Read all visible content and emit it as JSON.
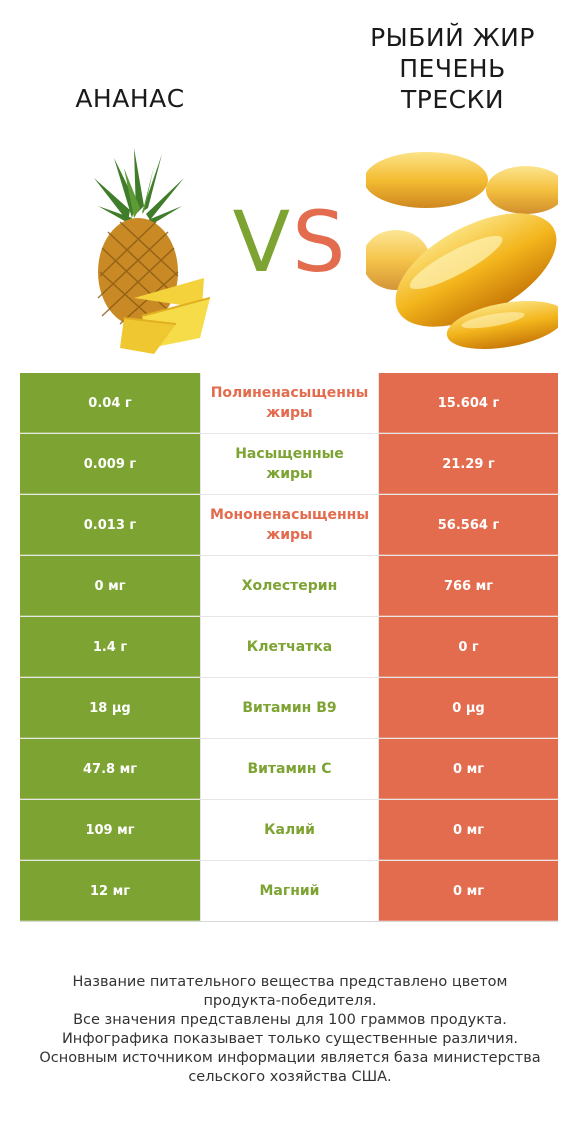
{
  "header": {
    "left_title": "АНАНАС",
    "right_title_lines": [
      "РЫБИЙ ЖИР",
      "ПЕЧЕНЬ",
      "ТРЕСКИ"
    ],
    "vs_v": "V",
    "vs_s": "S"
  },
  "colors": {
    "winner_left": "#7da332",
    "winner_right": "#e36b4e"
  },
  "rows": [
    {
      "left": "0.04 г",
      "nutrient_lines": [
        "Полиненасыщенны",
        "жиры"
      ],
      "winner": "right",
      "right": "15.604 г"
    },
    {
      "left": "0.009 г",
      "nutrient_lines": [
        "Насыщенные",
        "жиры"
      ],
      "winner": "left",
      "right": "21.29 г"
    },
    {
      "left": "0.013 г",
      "nutrient_lines": [
        "Мононенасыщенны",
        "жиры"
      ],
      "winner": "right",
      "right": "56.564 г"
    },
    {
      "left": "0 мг",
      "nutrient_lines": [
        "Холестерин"
      ],
      "winner": "left",
      "right": "766 мг"
    },
    {
      "left": "1.4 г",
      "nutrient_lines": [
        "Клетчатка"
      ],
      "winner": "left",
      "right": "0 г"
    },
    {
      "left": "18 µg",
      "nutrient_lines": [
        "Витамин B9"
      ],
      "winner": "left",
      "right": "0 µg"
    },
    {
      "left": "47.8 мг",
      "nutrient_lines": [
        "Витамин C"
      ],
      "winner": "left",
      "right": "0 мг"
    },
    {
      "left": "109 мг",
      "nutrient_lines": [
        "Калий"
      ],
      "winner": "left",
      "right": "0 мг"
    },
    {
      "left": "12 мг",
      "nutrient_lines": [
        "Магний"
      ],
      "winner": "left",
      "right": "0 мг"
    }
  ],
  "footer_lines": [
    "Название питательного вещества представлено цветом",
    "продукта-победителя.",
    "Все значения представлены для 100 граммов продукта.",
    "Инфографика показывает только существенные различия.",
    "Основным источником информации является база министерства",
    "сельского хозяйства США."
  ]
}
